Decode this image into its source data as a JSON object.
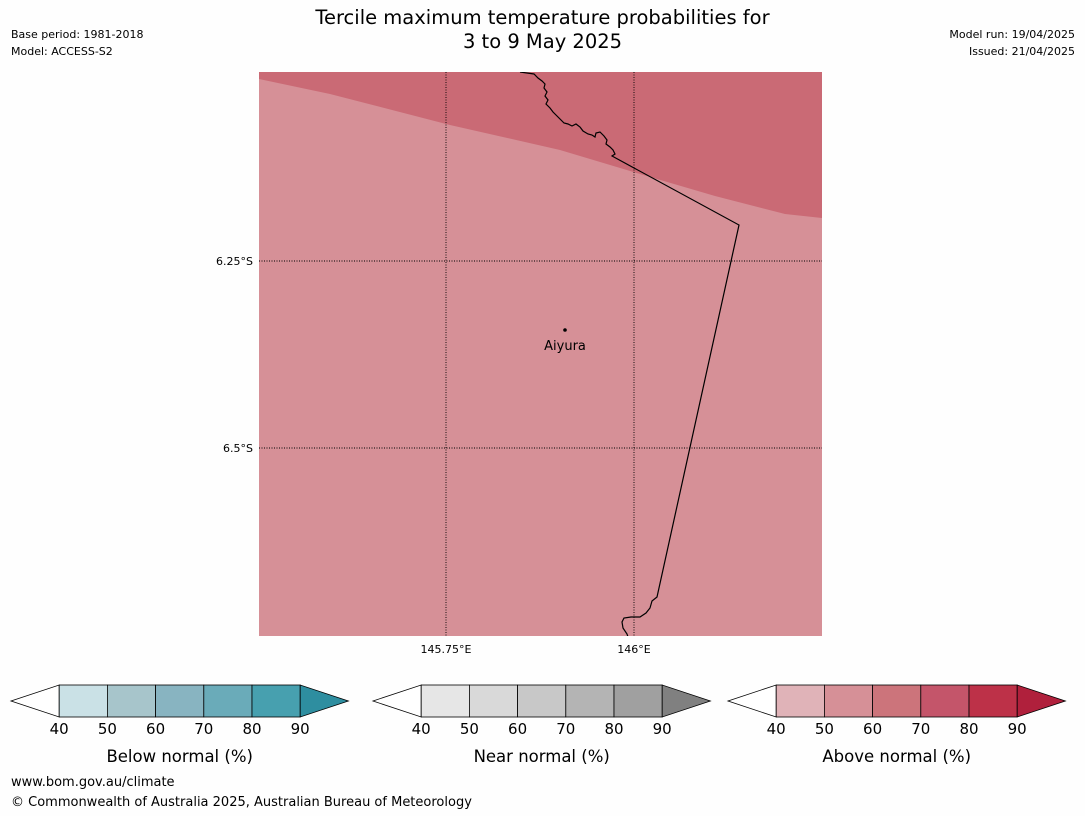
{
  "header": {
    "title_line1": "Tercile maximum temperature probabilities for",
    "title_line2": "3 to 9 May 2025",
    "base_period": "Base period: 1981-2018",
    "model": "Model: ACCESS-S2",
    "model_run": "Model run: 19/04/2025",
    "issued": "Issued: 21/04/2025"
  },
  "map": {
    "lat_labels": [
      "6.25°S",
      "6.5°S"
    ],
    "lon_labels": [
      "145.75°E",
      "146°E"
    ],
    "place": "Aiyura",
    "fills": {
      "above_50_60": "#d69097",
      "above_60_70": "#ca6a75"
    }
  },
  "legend": {
    "tick_labels": [
      "40",
      "50",
      "60",
      "70",
      "80",
      "90"
    ],
    "below": {
      "label": "Below normal (%)",
      "colors": [
        "#cae1e6",
        "#a7c5cb",
        "#88b4c1",
        "#6aabb9",
        "#47a0af",
        "#2e8ea0"
      ]
    },
    "near": {
      "label": "Near normal (%)",
      "colors": [
        "#e6e6e6",
        "#d9d9d9",
        "#c8c8c8",
        "#b4b4b4",
        "#a0a0a0",
        "#808080"
      ]
    },
    "above": {
      "label": "Above normal (%)",
      "colors": [
        "#e0b3b8",
        "#d69097",
        "#cc747b",
        "#c4556a",
        "#bd3148",
        "#b0203c"
      ]
    }
  },
  "footer": {
    "website": "www.bom.gov.au/climate",
    "copyright": "© Commonwealth of Australia 2025, Australian Bureau of Meteorology"
  }
}
